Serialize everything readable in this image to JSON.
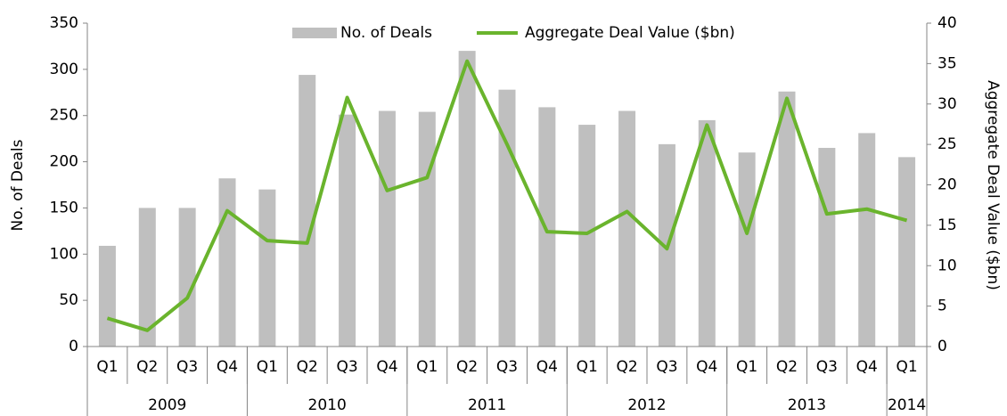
{
  "chart_data": {
    "type": "bar-line",
    "categories": [
      "Q1",
      "Q2",
      "Q3",
      "Q4",
      "Q1",
      "Q2",
      "Q3",
      "Q4",
      "Q1",
      "Q2",
      "Q3",
      "Q4",
      "Q1",
      "Q2",
      "Q3",
      "Q4",
      "Q1",
      "Q2",
      "Q3",
      "Q4",
      "Q1"
    ],
    "x_groups": [
      {
        "label": "2009",
        "span": 4
      },
      {
        "label": "2010",
        "span": 4
      },
      {
        "label": "2011",
        "span": 4
      },
      {
        "label": "2012",
        "span": 4
      },
      {
        "label": "2013",
        "span": 4
      },
      {
        "label": "2014",
        "span": 1
      }
    ],
    "series": [
      {
        "name": "No. of Deals",
        "type": "bar",
        "color": "#bfbfbf",
        "axis": "y",
        "values": [
          109,
          150,
          150,
          182,
          170,
          294,
          251,
          255,
          254,
          320,
          278,
          259,
          240,
          255,
          219,
          245,
          210,
          276,
          215,
          231,
          205
        ]
      },
      {
        "name": "Aggregate Deal Value ($bn)",
        "type": "line",
        "color": "#6ab42d",
        "axis": "y2",
        "values": [
          3.5,
          2,
          6,
          16.8,
          13.1,
          12.8,
          30.8,
          19.3,
          20.9,
          35.3,
          25,
          14.2,
          14,
          16.7,
          12.1,
          27.4,
          14,
          30.7,
          16.4,
          17,
          15.6
        ]
      }
    ],
    "ylabel": "No. of Deals",
    "y2label": "Aggregate Deal Value ($bn)",
    "ylim": [
      0,
      350
    ],
    "yticks": [
      0,
      50,
      100,
      150,
      200,
      250,
      300,
      350
    ],
    "y2lim": [
      0,
      40
    ],
    "y2ticks": [
      0,
      5,
      10,
      15,
      20,
      25,
      30,
      35,
      40
    ],
    "legend": "top",
    "grid": false
  }
}
